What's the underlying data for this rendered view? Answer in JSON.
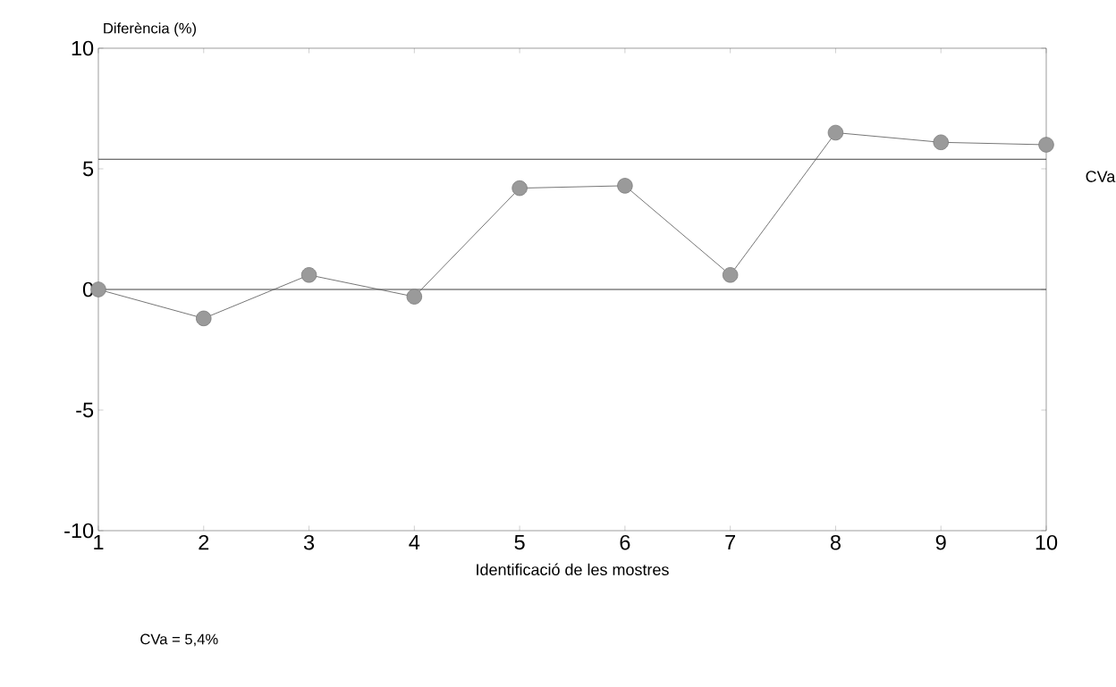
{
  "chart_data": {
    "type": "line",
    "ylabel": "Diferència (%)",
    "xlabel": "Identificació de les mostres",
    "x": [
      1,
      2,
      3,
      4,
      5,
      6,
      7,
      8,
      9,
      10
    ],
    "series": [
      {
        "color": "#9a9a9a",
        "values": [
          0,
          -1.2,
          0.6,
          -0.3,
          4.2,
          4.3,
          0.6,
          6.5,
          6.1,
          6.0
        ]
      }
    ],
    "marker": "circle",
    "xlim": [
      1,
      10
    ],
    "xticks": [
      1,
      2,
      3,
      4,
      5,
      6,
      7,
      8,
      9,
      10
    ],
    "ylim": [
      -10,
      10
    ],
    "yticks": [
      -10,
      -5,
      0,
      5,
      10
    ],
    "ref_lines": [
      {
        "axis": "y",
        "value": 5.4,
        "label": "CVa"
      },
      {
        "axis": "y",
        "value": 0,
        "label": null
      }
    ],
    "annotations": [
      "CVa = 5,4%"
    ]
  }
}
